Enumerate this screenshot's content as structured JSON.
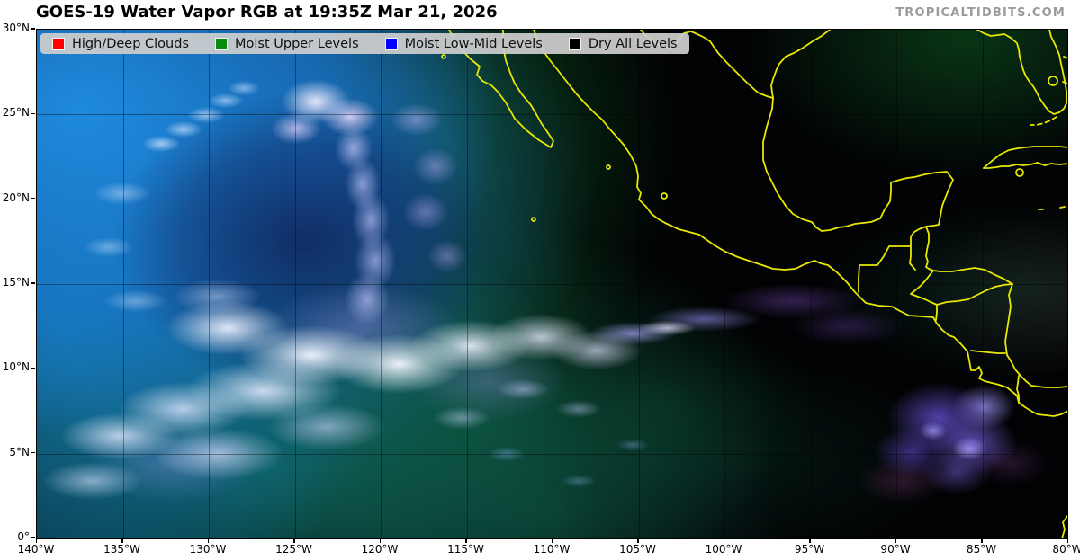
{
  "header": {
    "title": "GOES-19 Water Vapor RGB at 19:35Z Mar 21, 2026",
    "watermark": "TROPICALTIDBITS.COM"
  },
  "legend": {
    "items": [
      {
        "label": "High/Deep Clouds",
        "color": "#ff0000"
      },
      {
        "label": "Moist Upper Levels",
        "color": "#0a8a0a"
      },
      {
        "label": "Moist Low-Mid Levels",
        "color": "#0000ff"
      },
      {
        "label": "Dry All Levels",
        "color": "#000000"
      }
    ]
  },
  "axes": {
    "lat": [
      "30°N",
      "25°N",
      "20°N",
      "15°N",
      "10°N",
      "5°N",
      "0°"
    ],
    "lon": [
      "140°W",
      "135°W",
      "130°W",
      "125°W",
      "120°W",
      "115°W",
      "110°W",
      "105°W",
      "100°W",
      "95°W",
      "90°W",
      "85°W",
      "80°W"
    ]
  },
  "map": {
    "coastline_color": "#e8e800",
    "background": "#000000"
  }
}
